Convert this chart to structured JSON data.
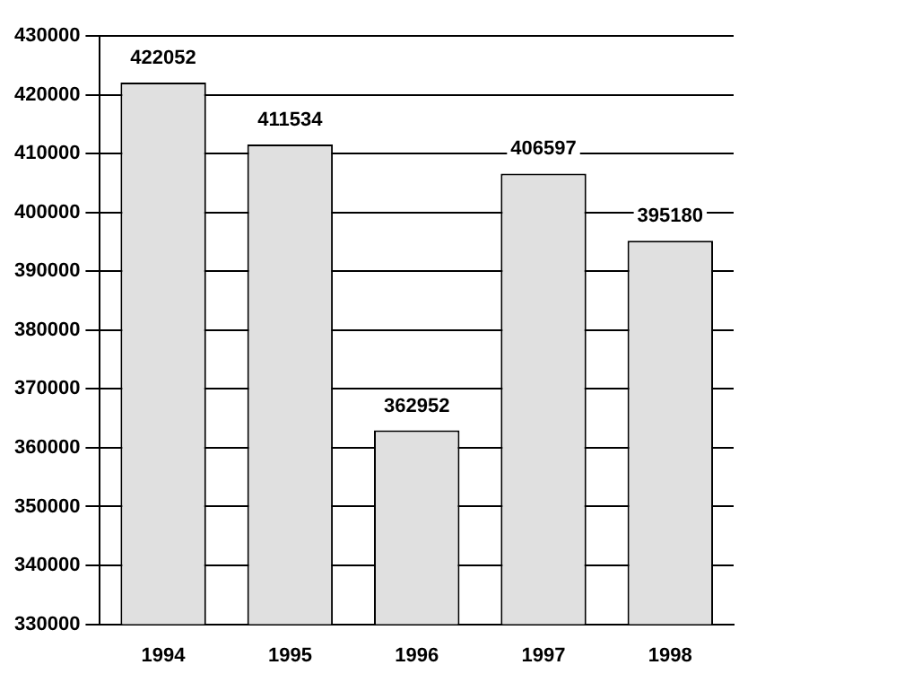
{
  "chart_data": {
    "type": "bar",
    "categories": [
      "1994",
      "1995",
      "1996",
      "1997",
      "1998"
    ],
    "values": [
      422052,
      411534,
      362952,
      406597,
      395180
    ],
    "color": "#e0e0e0",
    "ylim": [
      330000,
      430000
    ],
    "yticks": [
      330000,
      340000,
      350000,
      360000,
      370000,
      380000,
      390000,
      400000,
      410000,
      420000,
      430000
    ],
    "grid": "y",
    "data_labels": true,
    "legend": false
  }
}
